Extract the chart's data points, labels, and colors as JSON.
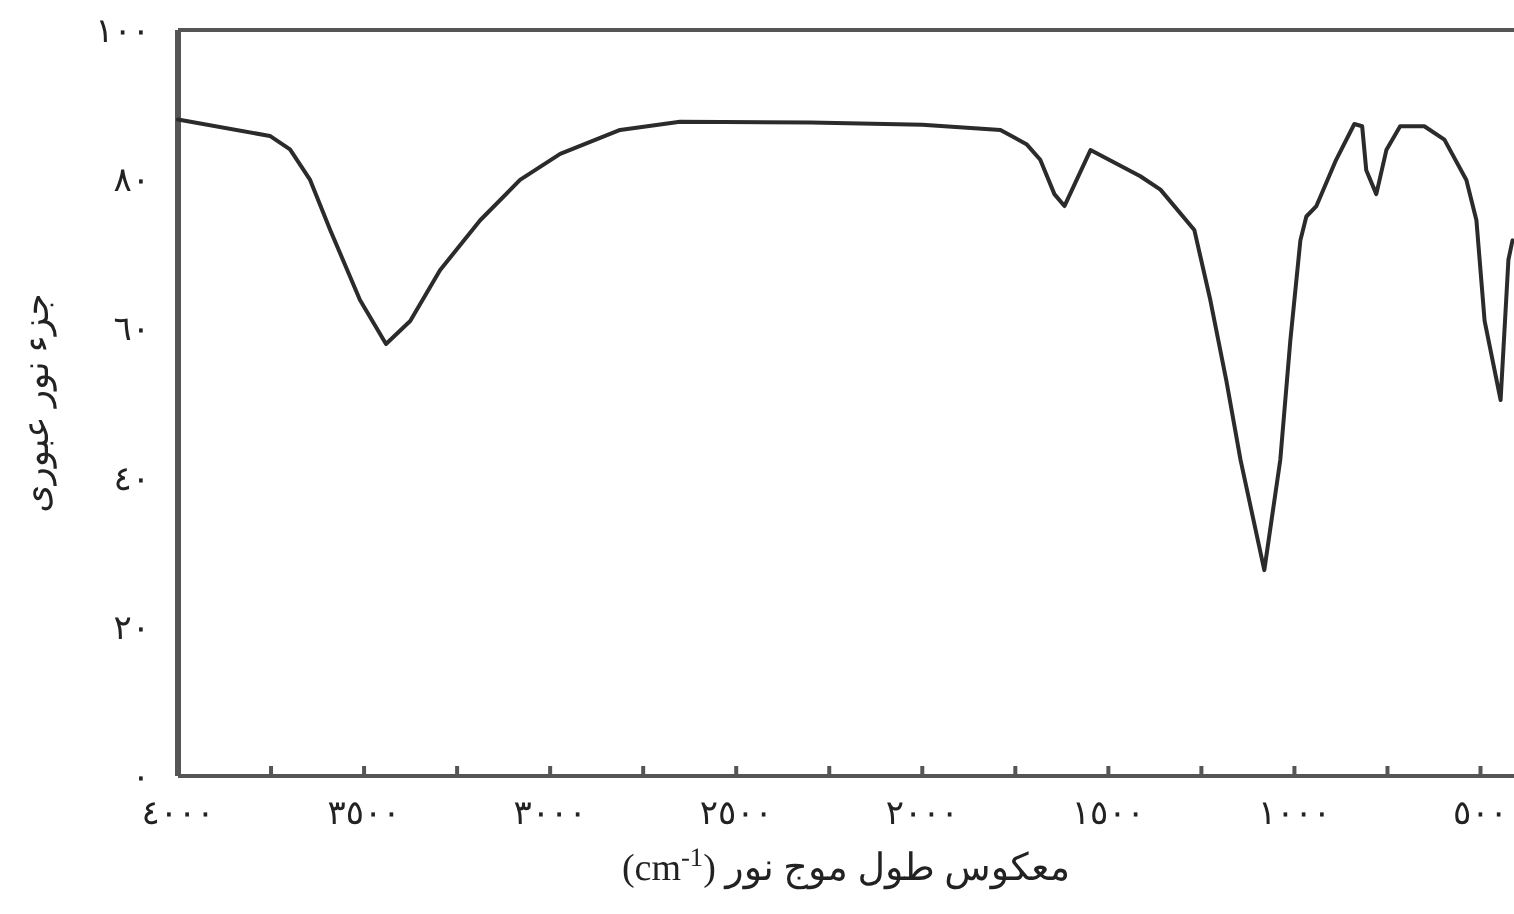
{
  "chart_data": {
    "type": "line",
    "xlabel": "معکوس طول موج نور (cm$^{-1}$)",
    "ylabel": "جزء نور عبوری",
    "color": "#2b2b2b",
    "x": [
      4000,
      3753,
      3699,
      3645,
      3591,
      3511,
      3441,
      3376,
      3296,
      3188,
      3081,
      2973,
      2812,
      2651,
      2300,
      2000,
      1790,
      1720,
      1683,
      1645,
      1618,
      1548,
      1414,
      1360,
      1269,
      1226,
      1183,
      1145,
      1081,
      1038,
      1011,
      984,
      968,
      941,
      888,
      839,
      818,
      807,
      780,
      753,
      716,
      651,
      597,
      538,
      511,
      489,
      446,
      425,
      414
    ],
    "values": [
      88,
      85.8,
      84,
      79.9,
      73.2,
      63.8,
      57.9,
      61,
      67.8,
      74.5,
      79.9,
      83.4,
      86.6,
      87.7,
      87.6,
      87.3,
      86.6,
      84.7,
      82.6,
      78,
      76.4,
      83.9,
      80.4,
      78.6,
      73.2,
      63.8,
      53,
      42.4,
      27.6,
      42.4,
      58.4,
      71.8,
      75,
      76.4,
      82.6,
      87.4,
      87.1,
      81.2,
      78,
      83.9,
      87.1,
      87.1,
      85.3,
      79.9,
      74.5,
      61,
      50.4,
      69.2,
      71.8
    ],
    "xlim": [
      4000,
      410
    ],
    "ylim": [
      0,
      100
    ],
    "xticks": [
      {
        "value": 4000,
        "label": "٤٠٠٠"
      },
      {
        "value": 3750,
        "label": null
      },
      {
        "value": 3500,
        "label": "٣٥٠٠"
      },
      {
        "value": 3250,
        "label": null
      },
      {
        "value": 3000,
        "label": "٣٠٠٠"
      },
      {
        "value": 2750,
        "label": null
      },
      {
        "value": 2500,
        "label": "٢٥٠٠"
      },
      {
        "value": 2250,
        "label": null
      },
      {
        "value": 2000,
        "label": "٢٠٠٠"
      },
      {
        "value": 1750,
        "label": null
      },
      {
        "value": 1500,
        "label": "١٥٠٠"
      },
      {
        "value": 1250,
        "label": null
      },
      {
        "value": 1000,
        "label": "١٠٠٠"
      },
      {
        "value": 750,
        "label": null
      },
      {
        "value": 500,
        "label": "٥٠٠"
      }
    ],
    "yticks": [
      {
        "value": 0,
        "label": "٠"
      },
      {
        "value": 20,
        "label": "٢٠"
      },
      {
        "value": 40,
        "label": "٤٠"
      },
      {
        "value": 60,
        "label": "٦٠"
      },
      {
        "value": 80,
        "label": "٨٠"
      },
      {
        "value": 100,
        "label": "١٠٠"
      }
    ]
  }
}
